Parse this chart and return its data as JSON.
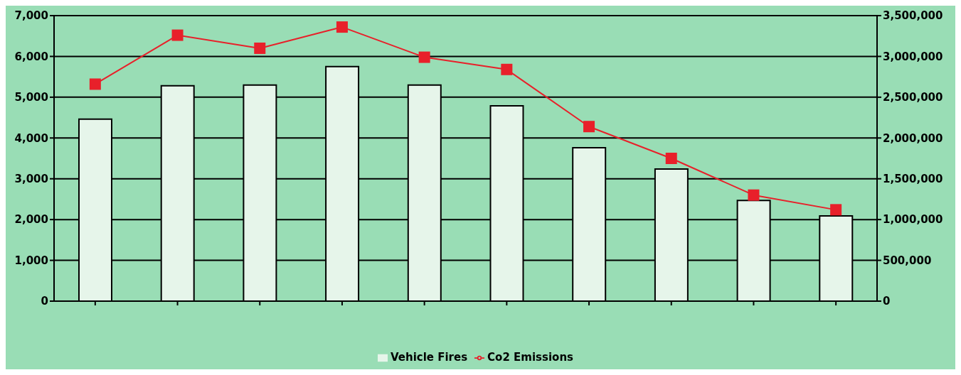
{
  "chart_data": {
    "type": "bar",
    "categories": [
      null,
      null,
      null,
      null,
      null,
      null,
      null,
      null,
      null,
      null
    ],
    "series": [
      {
        "name": "Vehicle Fires",
        "color": "#e6f5ea",
        "values": [
          4460,
          5280,
          5300,
          5750,
          5300,
          4790,
          3760,
          3240,
          2470,
          2090
        ]
      },
      {
        "name": "Co2 Emissions",
        "type": "line",
        "axis": "y2",
        "color": "#e8202a",
        "values": [
          2660000,
          3260000,
          3100000,
          3360000,
          2990000,
          2840000,
          2140000,
          1750000,
          1300000,
          1120000
        ]
      }
    ],
    "ylim": [
      0,
      7000
    ],
    "yticks": [
      0,
      {
        "value": 1000,
        "label": "1,000"
      },
      {
        "value": 2000,
        "label": "2,000"
      },
      {
        "value": 3000,
        "label": "3,000"
      },
      {
        "value": 4000,
        "label": "4,000"
      },
      {
        "value": 5000,
        "label": "5,000"
      },
      {
        "value": 6000,
        "label": "6,000"
      },
      {
        "value": 7000,
        "label": "7,000"
      }
    ],
    "y2lim": [
      0,
      3500000
    ],
    "y2ticks": [
      0,
      {
        "value": 500000,
        "label": "500,000"
      },
      {
        "value": 1000000,
        "label": "1,000,000"
      },
      {
        "value": 1500000,
        "label": "1,500,000"
      },
      {
        "value": 2000000,
        "label": "2,000,000"
      },
      {
        "value": 2500000,
        "label": "2,500,000"
      },
      {
        "value": 3000000,
        "label": "3,000,000"
      },
      {
        "value": 3500000,
        "label": "3,500,000"
      }
    ],
    "grid": "y",
    "legend": "bottom",
    "marker": "square",
    "line_style": "solid"
  }
}
